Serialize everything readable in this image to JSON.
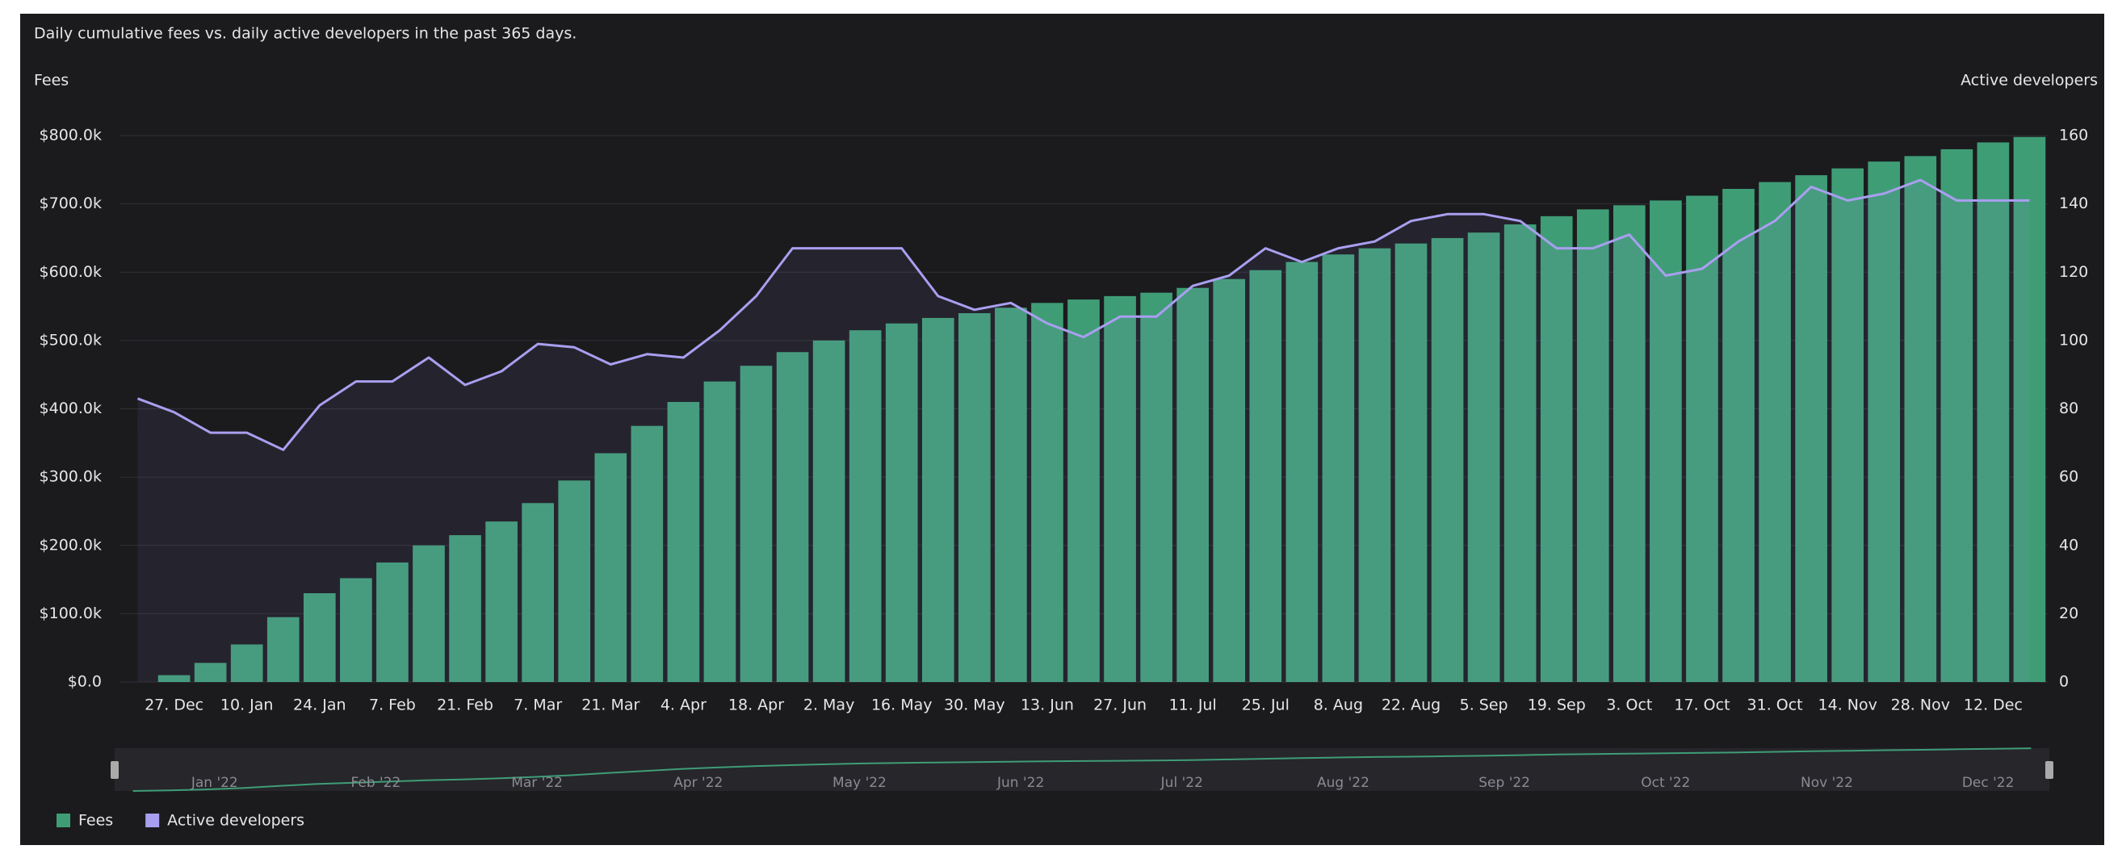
{
  "chart_data": {
    "type": "bar_line",
    "title": "Daily cumulative fees vs. daily active developers in the past 365 days.",
    "y_label": "Fees",
    "y2_label": "Active developers",
    "categories": [
      null,
      "27. Dec",
      null,
      "10. Jan",
      null,
      "24. Jan",
      null,
      "7. Feb",
      null,
      "21. Feb",
      null,
      "7. Mar",
      null,
      "21. Mar",
      null,
      "4. Apr",
      null,
      "18. Apr",
      null,
      "2. May",
      null,
      "16. May",
      null,
      "30. May",
      null,
      "13. Jun",
      null,
      "27. Jun",
      null,
      "11. Jul",
      null,
      "25. Jul",
      null,
      "8. Aug",
      null,
      "22. Aug",
      null,
      "5. Sep",
      null,
      "19. Sep",
      null,
      "3. Oct",
      null,
      "17. Oct",
      null,
      "31. Oct",
      null,
      "14. Nov",
      null,
      "28. Nov",
      null,
      "12. Dec",
      null
    ],
    "series": [
      {
        "name": "Fees",
        "color": "#3f9d76",
        "type": "bar",
        "values": [
          0,
          10000,
          28000,
          55000,
          95000,
          130000,
          152000,
          175000,
          200000,
          215000,
          235000,
          262000,
          295000,
          335000,
          375000,
          410000,
          440000,
          463000,
          483000,
          500000,
          515000,
          525000,
          533000,
          540000,
          548000,
          555000,
          560000,
          565000,
          570000,
          577000,
          590000,
          603000,
          615000,
          626000,
          635000,
          642000,
          650000,
          658000,
          670000,
          682000,
          692000,
          698000,
          705000,
          712000,
          722000,
          732000,
          742000,
          752000,
          762000,
          770000,
          780000,
          790000,
          798000
        ]
      },
      {
        "name": "Active developers",
        "color": "#a99ff0",
        "type": "line",
        "axis": "y2",
        "values": [
          83,
          79,
          73,
          73,
          68,
          81,
          88,
          88,
          95,
          87,
          91,
          99,
          98,
          93,
          96,
          95,
          103,
          113,
          127,
          127,
          127,
          127,
          113,
          109,
          111,
          105,
          101,
          107,
          107,
          116,
          119,
          127,
          123,
          127,
          129,
          135,
          137,
          137,
          135,
          127,
          127,
          131,
          119,
          121,
          129,
          135,
          145,
          141,
          143,
          147,
          141,
          141,
          141
        ]
      }
    ],
    "ylim": [
      0,
      800000
    ],
    "yticks": [
      {
        "value": 0,
        "label": "$0.0"
      },
      {
        "value": 100000,
        "label": "$100.0k"
      },
      {
        "value": 200000,
        "label": "$200.0k"
      },
      {
        "value": 300000,
        "label": "$300.0k"
      },
      {
        "value": 400000,
        "label": "$400.0k"
      },
      {
        "value": 500000,
        "label": "$500.0k"
      },
      {
        "value": 600000,
        "label": "$600.0k"
      },
      {
        "value": 700000,
        "label": "$700.0k"
      },
      {
        "value": 800000,
        "label": "$800.0k"
      }
    ],
    "y2lim": [
      0,
      160
    ],
    "y2ticks": [
      0,
      20,
      40,
      60,
      80,
      100,
      120,
      140,
      160
    ],
    "grid": true,
    "navigator_labels": [
      "Jan '22",
      "Feb '22",
      "Mar '22",
      "Apr '22",
      "May '22",
      "Jun '22",
      "Jul '22",
      "Aug '22",
      "Sep '22",
      "Oct '22",
      "Nov '22",
      "Dec '22"
    ],
    "legend": "bottom-left"
  }
}
